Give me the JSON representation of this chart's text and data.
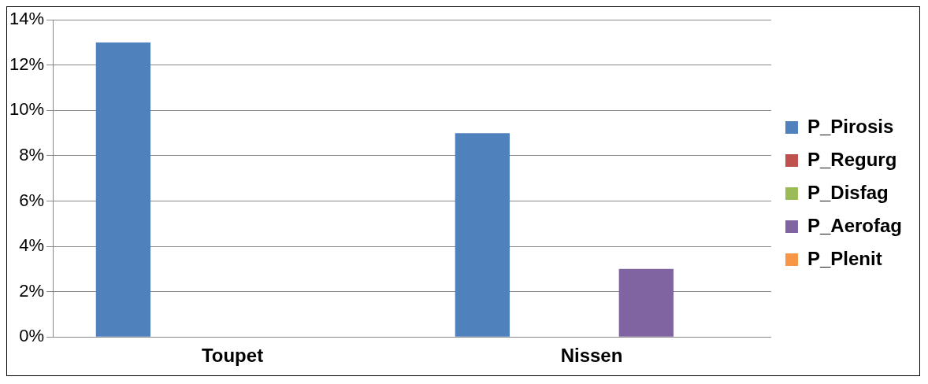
{
  "chart_data": {
    "type": "bar",
    "categories": [
      "Toupet",
      "Nissen"
    ],
    "series": [
      {
        "name": "P_Pirosis",
        "color": "#4f81bd",
        "values": [
          13,
          9
        ]
      },
      {
        "name": "P_Regurg",
        "color": "#c0504d",
        "values": [
          0,
          0
        ]
      },
      {
        "name": "P_Disfag",
        "color": "#9bbb59",
        "values": [
          0,
          0
        ]
      },
      {
        "name": "P_Aerofag",
        "color": "#8064a2",
        "values": [
          0,
          3
        ]
      },
      {
        "name": "P_Plenit",
        "color": "#f79646",
        "values": [
          0,
          0
        ]
      }
    ],
    "ylim": [
      0,
      14
    ],
    "yticks": [
      {
        "value": 0,
        "label": "0%"
      },
      {
        "value": 2,
        "label": "2%"
      },
      {
        "value": 4,
        "label": "4%"
      },
      {
        "value": 6,
        "label": "6%"
      },
      {
        "value": 8,
        "label": "8%"
      },
      {
        "value": 10,
        "label": "10%"
      },
      {
        "value": 12,
        "label": "12%"
      },
      {
        "value": 14,
        "label": "14%"
      }
    ],
    "grid": "y",
    "legend": "right"
  }
}
